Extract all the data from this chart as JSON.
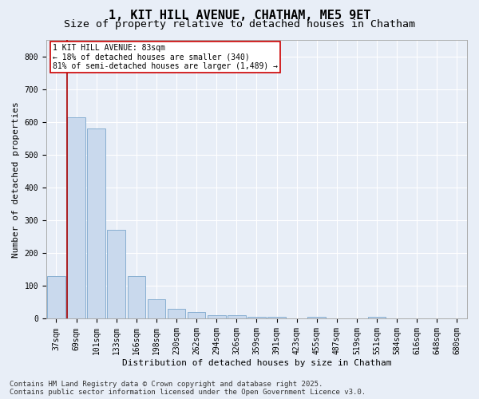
{
  "title_line1": "1, KIT HILL AVENUE, CHATHAM, ME5 9ET",
  "title_line2": "Size of property relative to detached houses in Chatham",
  "xlabel": "Distribution of detached houses by size in Chatham",
  "ylabel": "Number of detached properties",
  "categories": [
    "37sqm",
    "69sqm",
    "101sqm",
    "133sqm",
    "166sqm",
    "198sqm",
    "230sqm",
    "262sqm",
    "294sqm",
    "326sqm",
    "359sqm",
    "391sqm",
    "423sqm",
    "455sqm",
    "487sqm",
    "519sqm",
    "551sqm",
    "584sqm",
    "616sqm",
    "648sqm",
    "680sqm"
  ],
  "values": [
    130,
    615,
    580,
    270,
    130,
    60,
    30,
    20,
    12,
    12,
    5,
    5,
    0,
    5,
    0,
    0,
    5,
    0,
    0,
    0,
    0
  ],
  "bar_color": "#c9d9ed",
  "bar_edge_color": "#7ba7cc",
  "vline_color": "#aa0000",
  "annotation_text": "1 KIT HILL AVENUE: 83sqm\n← 18% of detached houses are smaller (340)\n81% of semi-detached houses are larger (1,489) →",
  "annotation_box_color": "white",
  "annotation_box_edge": "#cc0000",
  "ylim": [
    0,
    850
  ],
  "yticks": [
    0,
    100,
    200,
    300,
    400,
    500,
    600,
    700,
    800
  ],
  "background_color": "#e8eef7",
  "plot_background": "#e8eef7",
  "grid_color": "white",
  "footer_line1": "Contains HM Land Registry data © Crown copyright and database right 2025.",
  "footer_line2": "Contains public sector information licensed under the Open Government Licence v3.0.",
  "title_fontsize": 11,
  "subtitle_fontsize": 9.5,
  "axis_label_fontsize": 8,
  "tick_fontsize": 7,
  "footer_fontsize": 6.5
}
